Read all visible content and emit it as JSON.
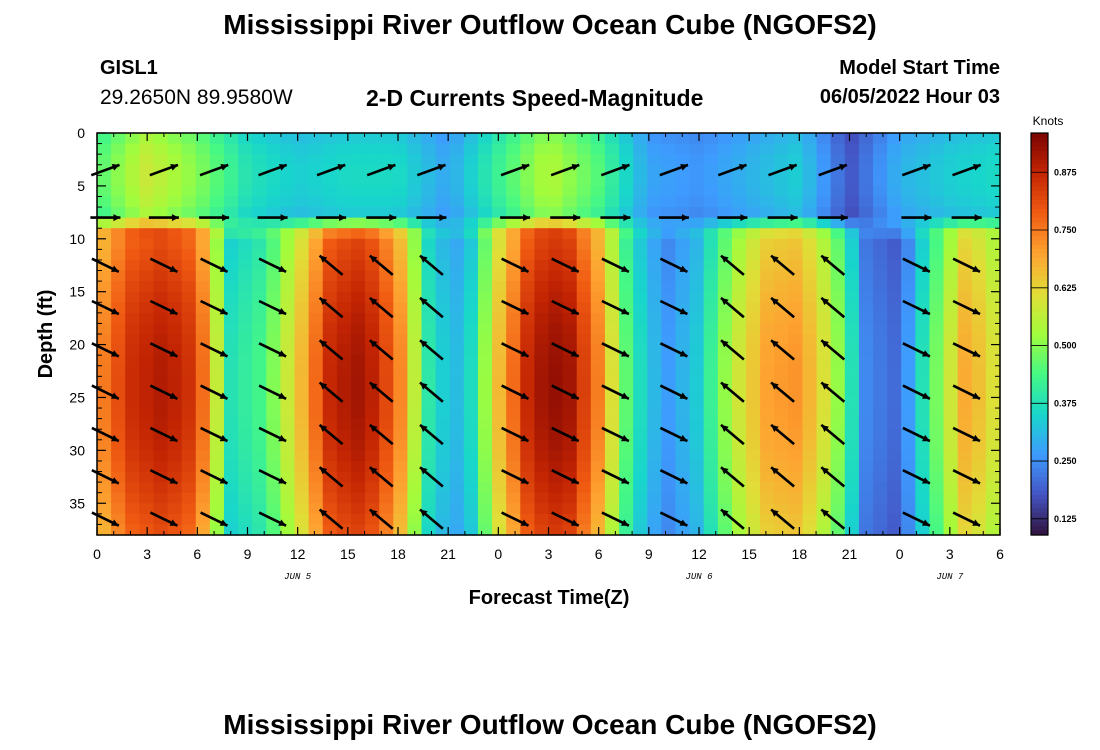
{
  "header": {
    "title": "Mississippi River Outflow Ocean Cube (NGOFS2)",
    "station_id": "GISL1",
    "coords": "29.2650N  89.9580W",
    "subtitle": "2-D Currents Speed-Magnitude",
    "start_label": "Model Start Time",
    "start_value": "06/05/2022 Hour 03"
  },
  "footer": {
    "title": "Mississippi River Outflow Ocean Cube (NGOFS2)"
  },
  "chart_data": {
    "type": "heatmap",
    "xlabel": "Forecast Time(Z)",
    "ylabel": "Depth (ft)",
    "x_range_hours": [
      0,
      54
    ],
    "x_tick_labels": [
      "0",
      "3",
      "6",
      "9",
      "12",
      "15",
      "18",
      "21",
      "0",
      "3",
      "6",
      "9",
      "12",
      "15",
      "18",
      "21",
      "0",
      "3",
      "6"
    ],
    "date_labels": [
      {
        "text": "JUN 5",
        "hour": 12
      },
      {
        "text": "JUN 6",
        "hour": 36
      },
      {
        "text": "JUN 7",
        "hour": 51
      }
    ],
    "y_range": [
      0,
      38
    ],
    "y_ticks": [
      0,
      5,
      10,
      15,
      20,
      25,
      30,
      35
    ],
    "y_tick_labels": [
      "0",
      "5",
      "10",
      "15",
      "20",
      "25",
      "30",
      "35"
    ],
    "y_inverted": true,
    "colorbar": {
      "unit": "Knots",
      "range": [
        0.09,
        0.96
      ],
      "ticks": [
        0.125,
        0.25,
        0.375,
        0.5,
        0.625,
        0.75,
        0.875
      ],
      "tick_labels": [
        "0.125",
        "0.250",
        "0.375",
        "0.500",
        "0.625",
        "0.750",
        "0.875"
      ],
      "colors": [
        "#30123b",
        "#4454c4",
        "#3e9bfe",
        "#18d6cb",
        "#46f884",
        "#a2fc3c",
        "#e1dd37",
        "#fea331",
        "#f05b12",
        "#c42503",
        "#7a0403"
      ]
    },
    "surface_layer": {
      "depth_range_ft": [
        0,
        8
      ],
      "hours": [
        0,
        3,
        6,
        9,
        12,
        15,
        18,
        21,
        24,
        27,
        30,
        33,
        36,
        39,
        42,
        45,
        48,
        51,
        54
      ],
      "speed_knots": [
        0.45,
        0.58,
        0.5,
        0.38,
        0.34,
        0.36,
        0.36,
        0.28,
        0.42,
        0.55,
        0.45,
        0.28,
        0.26,
        0.3,
        0.34,
        0.18,
        0.3,
        0.34,
        0.36
      ]
    },
    "deep_layer": {
      "depth_range_ft": [
        10,
        38
      ],
      "hours": [
        0,
        2,
        4,
        6,
        8,
        10,
        12,
        14,
        16,
        18,
        20,
        22,
        24,
        26,
        28,
        30,
        32,
        34,
        36,
        38,
        40,
        42,
        44,
        46,
        48,
        50,
        52,
        54
      ],
      "speed_knots": [
        0.72,
        0.86,
        0.9,
        0.84,
        0.38,
        0.44,
        0.64,
        0.88,
        0.92,
        0.76,
        0.36,
        0.3,
        0.66,
        0.9,
        0.94,
        0.74,
        0.4,
        0.26,
        0.34,
        0.56,
        0.7,
        0.72,
        0.56,
        0.24,
        0.2,
        0.46,
        0.7,
        0.58
      ]
    },
    "vector_columns": [
      {
        "hour": 0.5,
        "deep_dir": "SE"
      },
      {
        "hour": 4,
        "deep_dir": "SE"
      },
      {
        "hour": 7,
        "deep_dir": "SE"
      },
      {
        "hour": 10.5,
        "deep_dir": "SE"
      },
      {
        "hour": 14,
        "deep_dir": "NW"
      },
      {
        "hour": 17,
        "deep_dir": "NW"
      },
      {
        "hour": 20,
        "deep_dir": "NW"
      },
      {
        "hour": 25,
        "deep_dir": "SE"
      },
      {
        "hour": 28,
        "deep_dir": "SE"
      },
      {
        "hour": 31,
        "deep_dir": "SE"
      },
      {
        "hour": 34.5,
        "deep_dir": "SE"
      },
      {
        "hour": 38,
        "deep_dir": "NW"
      },
      {
        "hour": 41,
        "deep_dir": "NW"
      },
      {
        "hour": 44,
        "deep_dir": "NW"
      },
      {
        "hour": 49,
        "deep_dir": "SE"
      },
      {
        "hour": 52,
        "deep_dir": "SE"
      }
    ]
  }
}
